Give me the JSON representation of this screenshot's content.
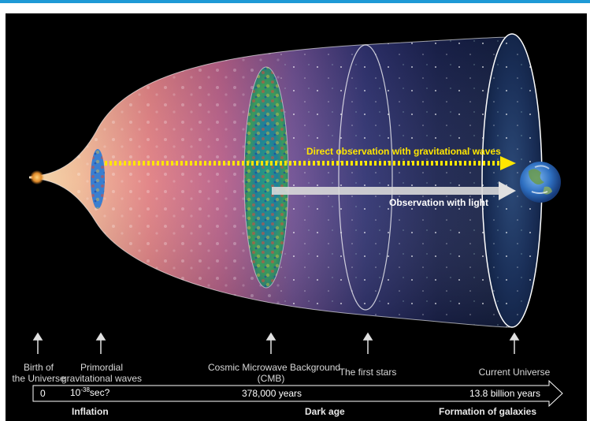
{
  "colors": {
    "accent_bar": "#1f9ad6",
    "gw_arrow": "#ffe600",
    "light_arrow": "#d9d9d9",
    "background": "#000000"
  },
  "arrows": {
    "gravitational": "Direct observation with gravitational waves",
    "light": "Observation with light"
  },
  "milestones": [
    {
      "line1": "Birth of",
      "line2": "the Universe"
    },
    {
      "line1": "Primordial",
      "line2": "gravitational waves"
    },
    {
      "line1": "Cosmic Microwave Background",
      "line2": "(CMB)"
    },
    {
      "line1": "The first stars",
      "line2": ""
    },
    {
      "line1": "Current Universe",
      "line2": ""
    }
  ],
  "timeline": {
    "t0": "0",
    "t1_base": "10",
    "t1_exp": "-38",
    "t1_unit": "sec?",
    "t2": "378,000 years",
    "t3": "13.8 billion years"
  },
  "eras": {
    "inflation": "Inflation",
    "dark_age": "Dark age",
    "galaxies": "Formation of galaxies"
  }
}
